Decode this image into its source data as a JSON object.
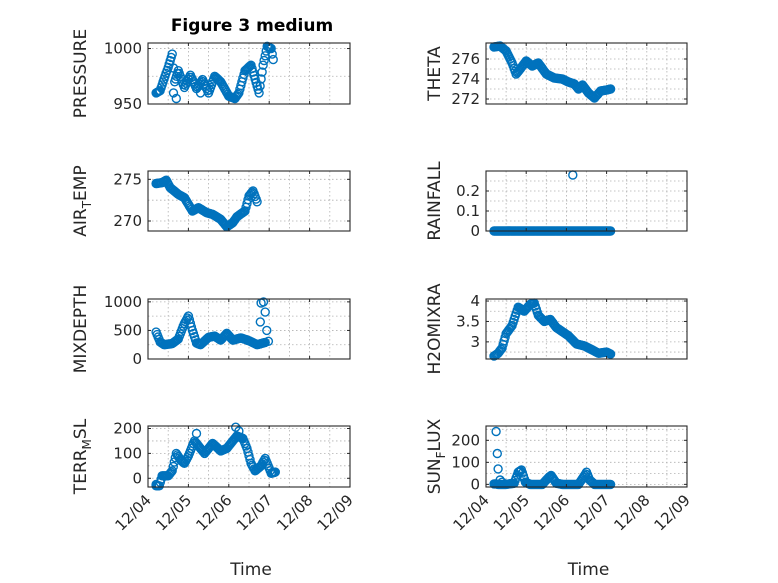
{
  "figure": {
    "title": "Figure 3 medium",
    "marker_color": "#0072bd"
  },
  "chart_data": [
    {
      "id": "pressure",
      "type": "scatter",
      "marker": "circle",
      "ylabel": "PRESSURE",
      "xlabel": "",
      "xlim": [
        "12/04",
        "12/09"
      ],
      "ylim": [
        950,
        1005
      ],
      "yticks": [
        950,
        1000
      ],
      "ytick_labels": [
        "950",
        "1000"
      ],
      "xtick_labels": [
        "",
        "",
        "",
        "",
        "",
        ""
      ],
      "title": "Figure 3 medium",
      "keypoints": [
        [
          0.0,
          960
        ],
        [
          0.1,
          962
        ],
        [
          0.22,
          975
        ],
        [
          0.3,
          983
        ],
        [
          0.4,
          995
        ],
        [
          0.46,
          970
        ],
        [
          0.55,
          980
        ],
        [
          0.7,
          965
        ],
        [
          0.85,
          976
        ],
        [
          1.0,
          964
        ],
        [
          1.15,
          972
        ],
        [
          1.3,
          960
        ],
        [
          1.45,
          975
        ],
        [
          1.6,
          970
        ],
        [
          1.8,
          957
        ],
        [
          1.95,
          955
        ],
        [
          2.05,
          960
        ],
        [
          2.2,
          980
        ],
        [
          2.35,
          985
        ],
        [
          2.55,
          960
        ],
        [
          2.65,
          985
        ],
        [
          2.75,
          1002
        ],
        [
          2.85,
          1000
        ],
        [
          2.9,
          990
        ]
      ],
      "extra_points": [
        [
          0.43,
          960
        ],
        [
          0.5,
          955
        ],
        [
          1.1,
          960
        ]
      ]
    },
    {
      "id": "theta",
      "type": "scatter",
      "marker": "circle",
      "ylabel": "THETA",
      "xlabel": "",
      "xlim": [
        "12/04",
        "12/09"
      ],
      "ylim": [
        271.5,
        277.6
      ],
      "yticks": [
        272,
        274,
        276
      ],
      "ytick_labels": [
        "272",
        "274",
        "276"
      ],
      "xtick_labels": [
        "",
        "",
        "",
        "",
        "",
        ""
      ],
      "keypoints": [
        [
          0.0,
          277.2
        ],
        [
          0.15,
          277.3
        ],
        [
          0.3,
          276.8
        ],
        [
          0.45,
          275.6
        ],
        [
          0.55,
          274.5
        ],
        [
          0.65,
          275.0
        ],
        [
          0.8,
          275.8
        ],
        [
          0.95,
          275.3
        ],
        [
          1.1,
          275.6
        ],
        [
          1.3,
          274.5
        ],
        [
          1.5,
          274.1
        ],
        [
          1.7,
          274.0
        ],
        [
          1.85,
          273.7
        ],
        [
          2.0,
          273.5
        ],
        [
          2.1,
          273.0
        ],
        [
          2.2,
          273.4
        ],
        [
          2.35,
          272.6
        ],
        [
          2.5,
          272.1
        ],
        [
          2.65,
          272.8
        ],
        [
          2.8,
          272.9
        ],
        [
          2.9,
          273.0
        ]
      ],
      "extra_points": []
    },
    {
      "id": "air_temp",
      "type": "scatter",
      "marker": "circle",
      "ylabel": "AIR_TEMP",
      "ylabel_main": "AIR",
      "ylabel_sub": "T",
      "ylabel_tail": "EMP",
      "xlabel": "",
      "xlim": [
        "12/04",
        "12/09"
      ],
      "ylim": [
        268.8,
        276.0
      ],
      "yticks": [
        270,
        275
      ],
      "ytick_labels": [
        "270",
        "275"
      ],
      "xtick_labels": [
        "",
        "",
        "",
        "",
        "",
        ""
      ],
      "keypoints": [
        [
          0.0,
          274.5
        ],
        [
          0.15,
          274.6
        ],
        [
          0.25,
          274.9
        ],
        [
          0.35,
          274.0
        ],
        [
          0.55,
          273.2
        ],
        [
          0.7,
          272.8
        ],
        [
          0.9,
          271.2
        ],
        [
          1.05,
          271.6
        ],
        [
          1.25,
          271.0
        ],
        [
          1.4,
          270.8
        ],
        [
          1.6,
          270.2
        ],
        [
          1.75,
          269.3
        ],
        [
          1.9,
          269.8
        ],
        [
          2.0,
          270.5
        ],
        [
          2.2,
          271.2
        ],
        [
          2.3,
          273.0
        ],
        [
          2.4,
          273.6
        ],
        [
          2.5,
          272.3
        ]
      ],
      "extra_points": []
    },
    {
      "id": "rainfall",
      "type": "scatter",
      "marker": "circle",
      "ylabel": "RAINFALL",
      "xlabel": "",
      "xlim": [
        "12/04",
        "12/09"
      ],
      "ylim": [
        0,
        0.3
      ],
      "yticks": [
        0,
        0.1,
        0.2
      ],
      "ytick_labels": [
        "0",
        "0.1",
        "0.2"
      ],
      "xtick_labels": [
        "",
        "",
        "",
        "",
        "",
        ""
      ],
      "keypoints": [
        [
          0.0,
          0
        ],
        [
          2.9,
          0
        ]
      ],
      "extra_points": [
        [
          1.96,
          0.28
        ]
      ]
    },
    {
      "id": "mixdepth",
      "type": "scatter",
      "marker": "circle",
      "ylabel": "MIXDEPTH",
      "xlabel": "",
      "xlim": [
        "12/04",
        "12/09"
      ],
      "ylim": [
        0,
        1050
      ],
      "yticks": [
        0,
        500,
        1000
      ],
      "ytick_labels": [
        "0",
        "500",
        "1000"
      ],
      "xtick_labels": [
        "",
        "",
        "",
        "",
        "",
        ""
      ],
      "keypoints": [
        [
          0.0,
          470
        ],
        [
          0.1,
          300
        ],
        [
          0.2,
          250
        ],
        [
          0.4,
          270
        ],
        [
          0.55,
          350
        ],
        [
          0.7,
          620
        ],
        [
          0.8,
          750
        ],
        [
          0.9,
          500
        ],
        [
          1.0,
          280
        ],
        [
          1.1,
          250
        ],
        [
          1.3,
          380
        ],
        [
          1.45,
          400
        ],
        [
          1.6,
          330
        ],
        [
          1.75,
          450
        ],
        [
          1.9,
          330
        ],
        [
          2.1,
          370
        ],
        [
          2.3,
          320
        ],
        [
          2.5,
          250
        ],
        [
          2.7,
          290
        ]
      ],
      "extra_points": [
        [
          2.58,
          650
        ],
        [
          2.6,
          980
        ],
        [
          2.66,
          1000
        ],
        [
          2.7,
          820
        ],
        [
          2.74,
          500
        ],
        [
          2.78,
          310
        ]
      ]
    },
    {
      "id": "h2omixra",
      "type": "scatter",
      "marker": "circle",
      "ylabel": "H2OMIXRA",
      "xlabel": "",
      "xlim": [
        "12/04",
        "12/09"
      ],
      "ylim": [
        2.58,
        4.05
      ],
      "yticks": [
        3,
        3.5,
        4
      ],
      "ytick_labels": [
        "3",
        "3.5",
        "4"
      ],
      "xtick_labels": [
        "",
        "",
        "",
        "",
        "",
        ""
      ],
      "keypoints": [
        [
          0.0,
          2.65
        ],
        [
          0.1,
          2.72
        ],
        [
          0.2,
          2.85
        ],
        [
          0.3,
          3.2
        ],
        [
          0.45,
          3.4
        ],
        [
          0.6,
          3.85
        ],
        [
          0.75,
          3.75
        ],
        [
          0.9,
          3.92
        ],
        [
          1.0,
          3.95
        ],
        [
          1.1,
          3.65
        ],
        [
          1.25,
          3.5
        ],
        [
          1.4,
          3.55
        ],
        [
          1.55,
          3.35
        ],
        [
          1.7,
          3.25
        ],
        [
          1.85,
          3.15
        ],
        [
          2.05,
          2.95
        ],
        [
          2.25,
          2.9
        ],
        [
          2.45,
          2.8
        ],
        [
          2.6,
          2.72
        ],
        [
          2.8,
          2.75
        ],
        [
          2.9,
          2.7
        ]
      ],
      "extra_points": []
    },
    {
      "id": "terr_msl",
      "type": "scatter",
      "marker": "circle",
      "ylabel": "TERR_MSL",
      "ylabel_main": "TERR",
      "ylabel_sub": "M",
      "ylabel_tail": "SL",
      "xlabel": "Time",
      "xlim": [
        "12/04",
        "12/09"
      ],
      "ylim": [
        -35,
        210
      ],
      "yticks": [
        0,
        100,
        200
      ],
      "ytick_labels": [
        "0",
        "100",
        "200"
      ],
      "xtick_labels": [
        "12/04",
        "12/05",
        "12/06",
        "12/07",
        "12/08",
        "12/09"
      ],
      "keypoints": [
        [
          0.0,
          -30
        ],
        [
          0.08,
          -30
        ],
        [
          0.15,
          10
        ],
        [
          0.3,
          10
        ],
        [
          0.4,
          30
        ],
        [
          0.5,
          100
        ],
        [
          0.6,
          75
        ],
        [
          0.7,
          60
        ],
        [
          0.8,
          90
        ],
        [
          0.95,
          150
        ],
        [
          1.05,
          130
        ],
        [
          1.2,
          100
        ],
        [
          1.4,
          140
        ],
        [
          1.6,
          110
        ],
        [
          1.75,
          120
        ],
        [
          1.9,
          150
        ],
        [
          2.0,
          170
        ],
        [
          2.15,
          160
        ],
        [
          2.25,
          120
        ],
        [
          2.35,
          60
        ],
        [
          2.45,
          30
        ],
        [
          2.6,
          50
        ],
        [
          2.7,
          80
        ],
        [
          2.85,
          20
        ],
        [
          2.95,
          25
        ]
      ],
      "extra_points": [
        [
          0.0,
          -25
        ],
        [
          1.0,
          180
        ],
        [
          1.97,
          205
        ],
        [
          2.05,
          190
        ]
      ]
    },
    {
      "id": "sun_flux",
      "type": "scatter",
      "marker": "circle",
      "ylabel": "SUN_FLUX",
      "ylabel_main": "SUN",
      "ylabel_sub": "F",
      "ylabel_tail": "LUX",
      "xlabel": "Time",
      "xlim": [
        "12/04",
        "12/09"
      ],
      "ylim": [
        -12,
        265
      ],
      "yticks": [
        0,
        100,
        200
      ],
      "ytick_labels": [
        "0",
        "100",
        "200"
      ],
      "xtick_labels": [
        "12/04",
        "12/05",
        "12/06",
        "12/07",
        "12/08",
        "12/09"
      ],
      "keypoints": [
        [
          0.0,
          2
        ],
        [
          0.05,
          2
        ],
        [
          0.1,
          0
        ],
        [
          0.3,
          0
        ],
        [
          0.5,
          5
        ],
        [
          0.6,
          55
        ],
        [
          0.68,
          65
        ],
        [
          0.78,
          10
        ],
        [
          0.9,
          0
        ],
        [
          1.2,
          0
        ],
        [
          1.35,
          30
        ],
        [
          1.42,
          40
        ],
        [
          1.55,
          5
        ],
        [
          1.7,
          0
        ],
        [
          2.1,
          0
        ],
        [
          2.25,
          40
        ],
        [
          2.3,
          55
        ],
        [
          2.38,
          20
        ],
        [
          2.5,
          0
        ],
        [
          2.9,
          0
        ]
      ],
      "extra_points": [
        [
          0.05,
          240
        ],
        [
          0.08,
          140
        ],
        [
          0.1,
          70
        ],
        [
          0.15,
          20
        ],
        [
          0.2,
          10
        ]
      ]
    }
  ]
}
